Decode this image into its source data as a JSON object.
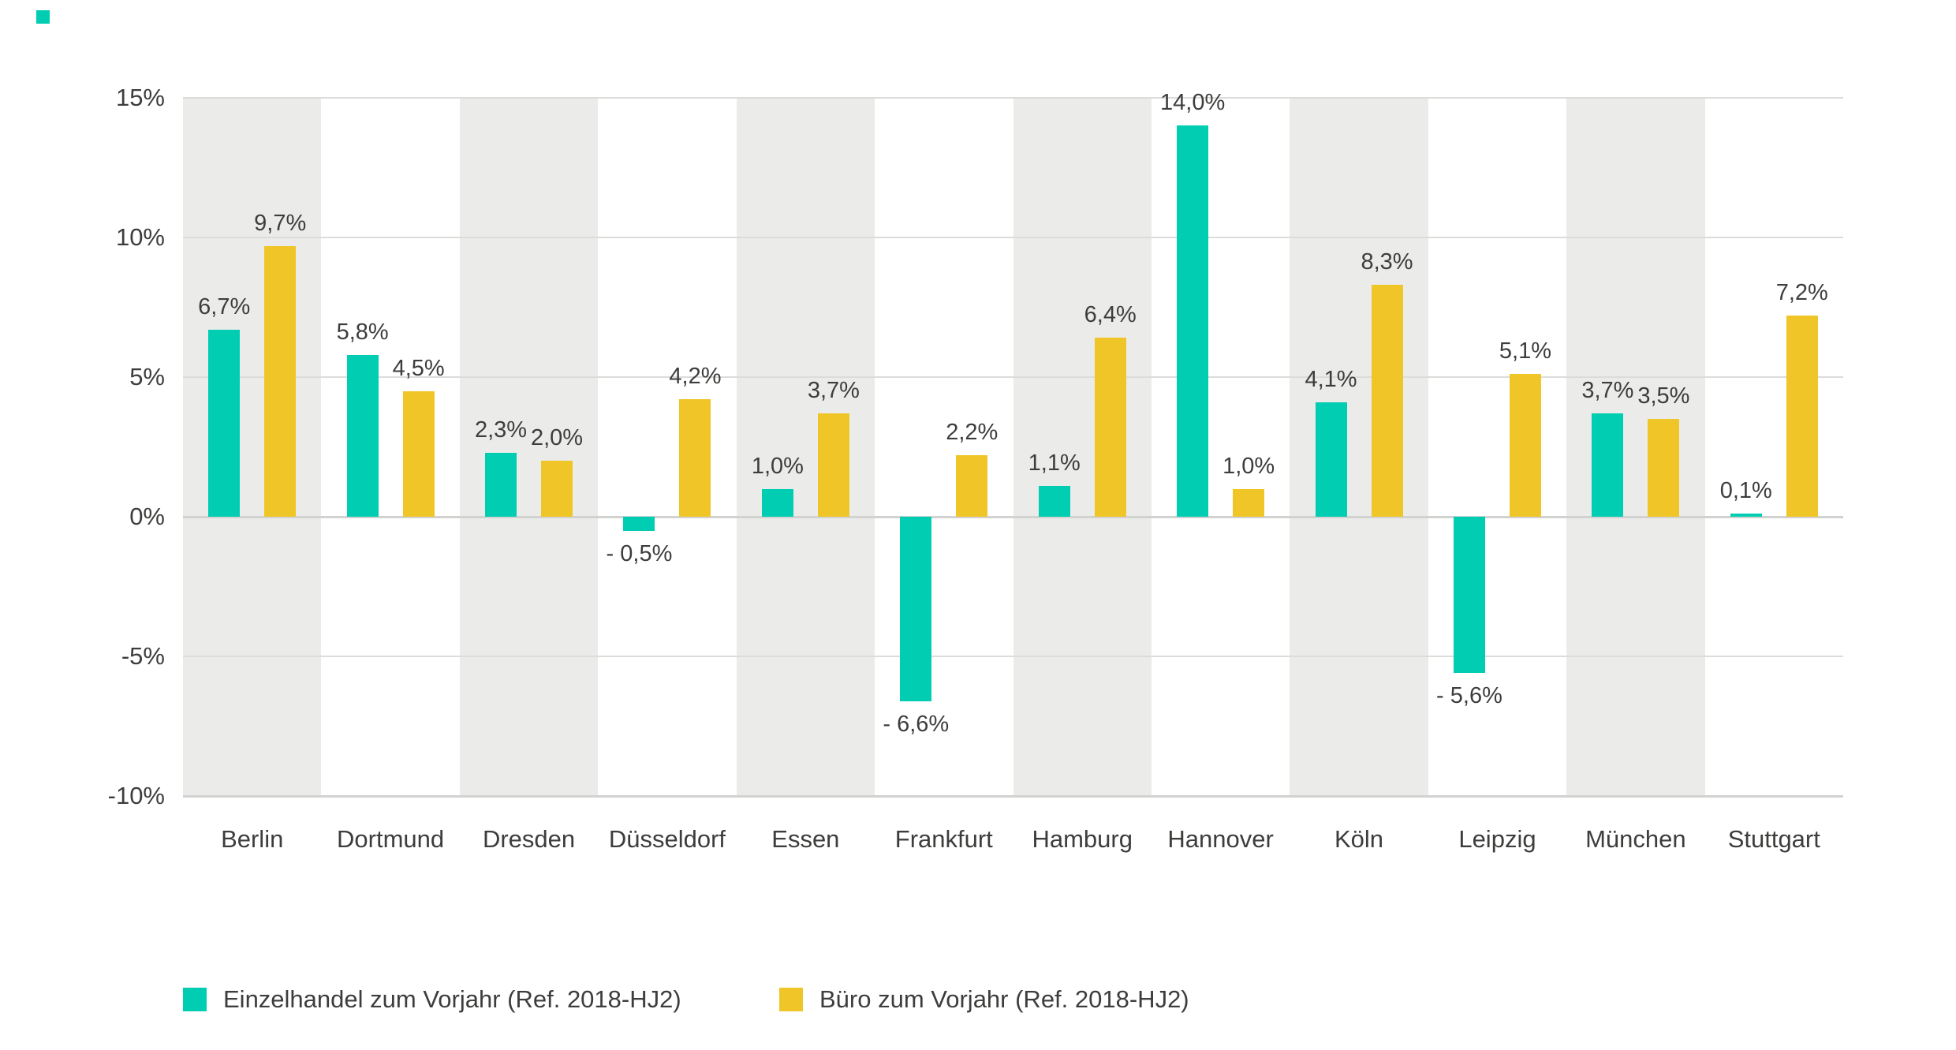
{
  "brand": {
    "mark_color": "#00cdb1"
  },
  "chart_data": {
    "type": "bar",
    "title": "",
    "categories": [
      "Berlin",
      "Dortmund",
      "Dresden",
      "Düsseldorf",
      "Essen",
      "Frankfurt",
      "Hamburg",
      "Hannover",
      "Köln",
      "Leipzig",
      "München",
      "Stuttgart"
    ],
    "series": [
      {
        "name": "Einzelhandel zum Vorjahr (Ref. 2018-HJ2)",
        "color": "#00cdb1",
        "values": [
          6.7,
          5.8,
          2.3,
          -0.5,
          1.0,
          -6.6,
          1.1,
          14.0,
          4.1,
          -5.6,
          3.7,
          0.1
        ],
        "labels": [
          "6,7%",
          "5,8%",
          "2,3%",
          "- 0,5%",
          "1,0%",
          "- 6,6%",
          "1,1%",
          "14,0%",
          "4,1%",
          "- 5,6%",
          "3,7%",
          "0,1%"
        ]
      },
      {
        "name": "Büro zum Vorjahr (Ref. 2018-HJ2)",
        "color": "#f0c527",
        "values": [
          9.7,
          4.5,
          2.0,
          4.2,
          3.7,
          2.2,
          6.4,
          1.0,
          8.3,
          5.1,
          3.5,
          7.2
        ],
        "labels": [
          "9,7%",
          "4,5%",
          "2,0%",
          "4,2%",
          "3,7%",
          "2,2%",
          "6,4%",
          "1,0%",
          "8,3%",
          "5,1%",
          "3,5%",
          "7,2%"
        ]
      }
    ],
    "y_axis": {
      "tick_labels": [
        "15%",
        "10%",
        "5%",
        "0%",
        "-5%",
        "-10%"
      ],
      "tick_values": [
        15,
        10,
        5,
        0,
        -5,
        -10
      ],
      "min": -10,
      "max": 15,
      "grid": true
    },
    "plot_style": {
      "stripe_color": "#ebebe9",
      "stripe_pattern": "alternating columns, first column shaded",
      "gridline_color": "#dcdcdb",
      "zero_axis_color": "#d2d2d1"
    },
    "legend_position": "bottom",
    "legend": [
      {
        "label": "Einzelhandel zum Vorjahr (Ref. 2018-HJ2)",
        "color": "#00cdb1"
      },
      {
        "label": "Büro zum Vorjahr (Ref. 2018-HJ2)",
        "color": "#f0c527"
      }
    ]
  }
}
